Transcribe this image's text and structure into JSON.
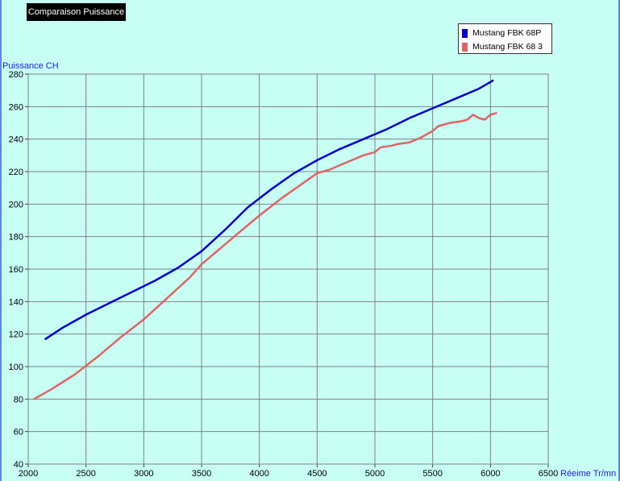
{
  "chart_data": {
    "type": "line",
    "title": "Comparaison Puissance",
    "xlabel": "Réeime Tr/mn",
    "ylabel": "Puissance CH",
    "xlim": [
      2000,
      6500
    ],
    "ylim": [
      40,
      280
    ],
    "x_ticks": [
      "2000",
      "2500",
      "3000",
      "3500",
      "4000",
      "4500",
      "5000",
      "5500",
      "6000",
      "6500"
    ],
    "y_ticks": [
      "40",
      "60",
      "80",
      "100",
      "120",
      "140",
      "160",
      "180",
      "200",
      "220",
      "240",
      "260",
      "280"
    ],
    "grid": true,
    "legend_position": "top-right",
    "series": [
      {
        "name": "Mustang FBK 68P",
        "color": "#0000d0",
        "x": [
          2150,
          2300,
          2500,
          2700,
          2900,
          3100,
          3300,
          3500,
          3700,
          3900,
          4100,
          4300,
          4500,
          4700,
          4900,
          5100,
          5300,
          5500,
          5700,
          5900,
          6020
        ],
        "y": [
          117,
          124,
          132,
          139,
          146,
          153,
          161,
          171,
          184,
          198,
          209,
          219,
          227,
          234,
          240,
          246,
          253,
          259,
          265,
          271,
          276
        ]
      },
      {
        "name": "Mustang FBK 68 3",
        "color": "#e06464",
        "x": [
          2050,
          2200,
          2400,
          2600,
          2800,
          3000,
          3200,
          3400,
          3500,
          3600,
          3800,
          4000,
          4200,
          4400,
          4500,
          4600,
          4700,
          4800,
          4900,
          5000,
          5050,
          5150,
          5200,
          5300,
          5400,
          5500,
          5550,
          5600,
          5650,
          5750,
          5800,
          5850,
          5900,
          5950,
          6000,
          6050
        ],
        "y": [
          80,
          86,
          95,
          106,
          118,
          129,
          142,
          155,
          163,
          169,
          181,
          193,
          204,
          214,
          219,
          221,
          224,
          227,
          230,
          232,
          235,
          236,
          237,
          238,
          241,
          245,
          248,
          249,
          250,
          251,
          252,
          255,
          253,
          252,
          255,
          256
        ]
      }
    ]
  }
}
